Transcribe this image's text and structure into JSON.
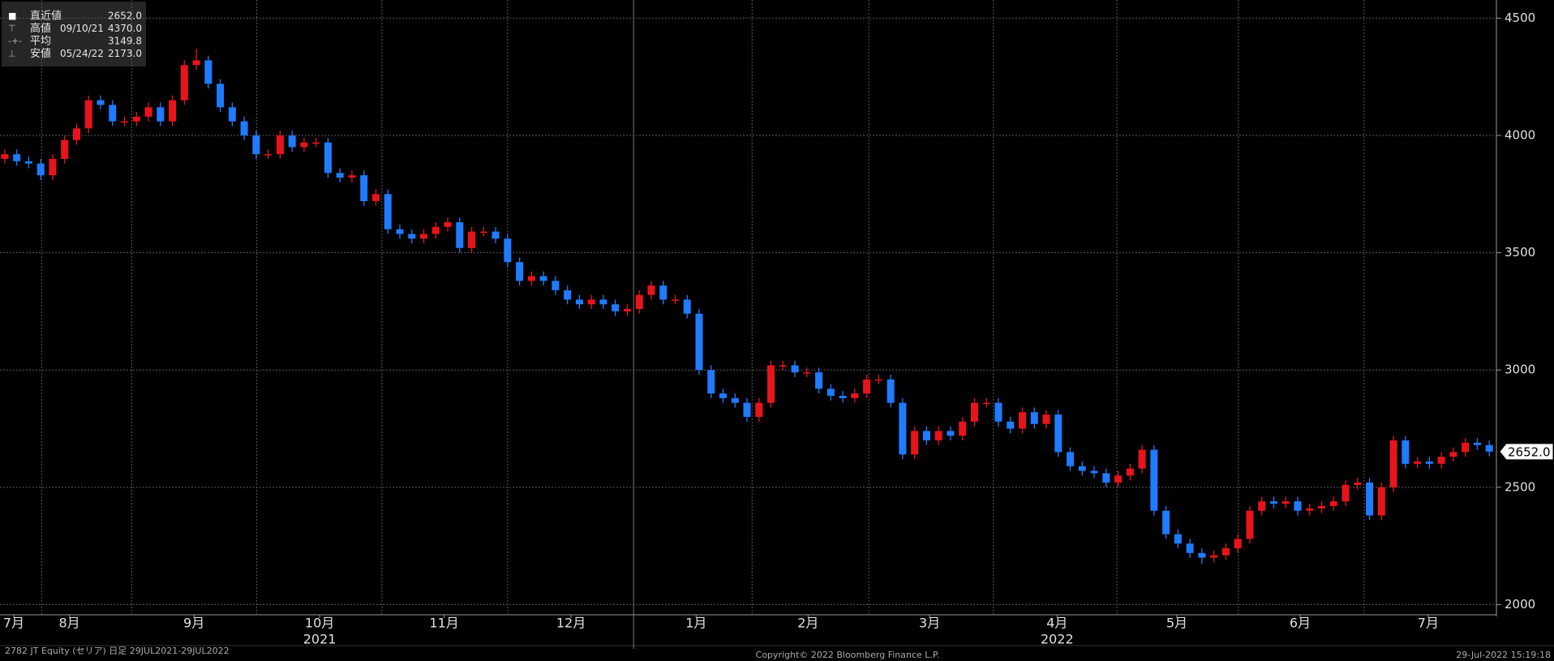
{
  "chart_data": {
    "type": "candlestick",
    "up_color": "#e8141c",
    "down_color": "#1f7bff",
    "grid": true,
    "ylim": [
      1960,
      4560
    ],
    "yticks": [
      2000,
      2500,
      3000,
      3500,
      4000,
      4500
    ],
    "xlim": [
      -0.4,
      124.6
    ],
    "xticks": [
      {
        "value": 0.75,
        "label": "7月"
      },
      {
        "value": 5.4,
        "label": "8月"
      },
      {
        "value": 15.8,
        "label": "9月"
      },
      {
        "value": 26.3,
        "label": "10月"
      },
      {
        "value": 36.7,
        "label": "11月"
      },
      {
        "value": 47.3,
        "label": "12月"
      },
      {
        "value": 57.75,
        "label": "1月"
      },
      {
        "value": 67.1,
        "label": "2月"
      },
      {
        "value": 77.25,
        "label": "3月"
      },
      {
        "value": 87.9,
        "label": "4月"
      },
      {
        "value": 97.9,
        "label": "5月"
      },
      {
        "value": 108.2,
        "label": "6月"
      },
      {
        "value": 118.9,
        "label": "7月"
      }
    ],
    "year_ticks": [
      {
        "value": 26.3,
        "label": "2021"
      },
      {
        "value": 87.9,
        "label": "2022"
      }
    ],
    "legend_items": [
      {
        "label": "直近値",
        "date": "",
        "value": "2652.0"
      },
      {
        "label": "高値",
        "date": "09/10/21",
        "value": "4370.0"
      },
      {
        "label": "平均",
        "date": "",
        "value": "3149.8"
      },
      {
        "label": "安値",
        "date": "05/24/22",
        "value": "2173.0"
      }
    ],
    "last_label": "2652.0",
    "footer_left": "2782 JT Equity (セリア)  日足 29JUL2021-29JUL2022",
    "footer_center": "Copyright© 2022 Bloomberg Finance L.P.",
    "footer_right": "29-Jul-2022 15:19:18",
    "open": [
      3900,
      3920,
      3890,
      3880,
      3830,
      3900,
      3980,
      4030,
      4150,
      4130,
      4060,
      4060,
      4080,
      4120,
      4060,
      4150,
      4300,
      4320,
      4220,
      4120,
      4060,
      4000,
      3920,
      3920,
      4000,
      3950,
      3970,
      3970,
      3840,
      3820,
      3830,
      3720,
      3750,
      3600,
      3580,
      3560,
      3580,
      3610,
      3630,
      3520,
      3590,
      3590,
      3560,
      3460,
      3380,
      3400,
      3380,
      3340,
      3300,
      3280,
      3300,
      3280,
      3250,
      3260,
      3320,
      3360,
      3300,
      3300,
      3240,
      3000,
      2900,
      2880,
      2860,
      2800,
      2860,
      3020,
      3020,
      2990,
      2990,
      2920,
      2890,
      2880,
      2900,
      2960,
      2960,
      2860,
      2640,
      2740,
      2700,
      2740,
      2720,
      2780,
      2860,
      2860,
      2780,
      2750,
      2820,
      2770,
      2810,
      2650,
      2590,
      2570,
      2560,
      2520,
      2550,
      2580,
      2660,
      2400,
      2300,
      2260,
      2220,
      2200,
      2210,
      2240,
      2280,
      2400,
      2440,
      2430,
      2440,
      2400,
      2410,
      2420,
      2440,
      2510,
      2520,
      2380,
      2500,
      2700,
      2600,
      2610,
      2600,
      2630,
      2650,
      2690,
      2680
    ],
    "high": [
      3940,
      3940,
      3910,
      3900,
      3920,
      4000,
      4050,
      4170,
      4170,
      4150,
      4080,
      4100,
      4140,
      4140,
      4170,
      4320,
      4370,
      4340,
      4240,
      4140,
      4080,
      4020,
      3940,
      4020,
      4020,
      3990,
      3990,
      3990,
      3860,
      3850,
      3850,
      3770,
      3770,
      3620,
      3600,
      3600,
      3630,
      3650,
      3650,
      3610,
      3610,
      3610,
      3580,
      3480,
      3420,
      3420,
      3400,
      3360,
      3320,
      3320,
      3320,
      3300,
      3280,
      3340,
      3380,
      3380,
      3320,
      3320,
      3260,
      3020,
      2920,
      2900,
      2880,
      2880,
      3040,
      3040,
      3040,
      3010,
      3010,
      2940,
      2910,
      2920,
      2980,
      2980,
      2980,
      2880,
      2760,
      2760,
      2760,
      2760,
      2800,
      2880,
      2880,
      2880,
      2800,
      2840,
      2840,
      2830,
      2830,
      2670,
      2610,
      2590,
      2580,
      2570,
      2600,
      2680,
      2680,
      2420,
      2320,
      2280,
      2240,
      2230,
      2260,
      2300,
      2420,
      2460,
      2460,
      2460,
      2460,
      2430,
      2440,
      2460,
      2530,
      2540,
      2540,
      2520,
      2720,
      2720,
      2630,
      2630,
      2650,
      2670,
      2710,
      2710,
      2700
    ],
    "low": [
      3880,
      3870,
      3860,
      3810,
      3810,
      3880,
      3960,
      4010,
      4110,
      4040,
      4040,
      4040,
      4060,
      4040,
      4040,
      4130,
      4280,
      4200,
      4100,
      4040,
      3980,
      3900,
      3900,
      3900,
      3930,
      3930,
      3950,
      3820,
      3800,
      3800,
      3700,
      3700,
      3580,
      3560,
      3540,
      3540,
      3560,
      3590,
      3500,
      3500,
      3570,
      3540,
      3440,
      3360,
      3360,
      3360,
      3320,
      3280,
      3260,
      3260,
      3260,
      3230,
      3230,
      3240,
      3300,
      3280,
      3280,
      3220,
      2980,
      2880,
      2860,
      2840,
      2780,
      2780,
      2840,
      3000,
      2970,
      2970,
      2900,
      2870,
      2860,
      2860,
      2880,
      2940,
      2840,
      2620,
      2620,
      2680,
      2680,
      2700,
      2700,
      2760,
      2840,
      2760,
      2730,
      2730,
      2750,
      2750,
      2630,
      2570,
      2550,
      2540,
      2500,
      2500,
      2530,
      2560,
      2380,
      2280,
      2240,
      2200,
      2173,
      2180,
      2190,
      2220,
      2260,
      2380,
      2410,
      2410,
      2380,
      2380,
      2390,
      2400,
      2420,
      2490,
      2360,
      2360,
      2480,
      2580,
      2580,
      2580,
      2580,
      2610,
      2630,
      2660,
      2632
    ],
    "close": [
      3920,
      3890,
      3880,
      3830,
      3900,
      3980,
      4030,
      4150,
      4130,
      4060,
      4060,
      4080,
      4120,
      4060,
      4150,
      4300,
      4320,
      4220,
      4120,
      4060,
      4000,
      3920,
      3920,
      4000,
      3950,
      3970,
      3970,
      3840,
      3820,
      3830,
      3720,
      3750,
      3600,
      3580,
      3560,
      3580,
      3610,
      3630,
      3520,
      3590,
      3590,
      3560,
      3460,
      3380,
      3400,
      3380,
      3340,
      3300,
      3280,
      3300,
      3280,
      3250,
      3260,
      3320,
      3360,
      3300,
      3300,
      3240,
      3000,
      2900,
      2880,
      2860,
      2800,
      2860,
      3020,
      3020,
      2990,
      2990,
      2920,
      2890,
      2880,
      2900,
      2960,
      2960,
      2860,
      2640,
      2740,
      2700,
      2740,
      2720,
      2780,
      2860,
      2860,
      2780,
      2750,
      2820,
      2770,
      2810,
      2650,
      2590,
      2570,
      2560,
      2520,
      2550,
      2580,
      2660,
      2400,
      2300,
      2260,
      2220,
      2200,
      2210,
      2240,
      2280,
      2400,
      2440,
      2430,
      2440,
      2400,
      2410,
      2420,
      2440,
      2510,
      2520,
      2380,
      2500,
      2700,
      2600,
      2610,
      2600,
      2630,
      2650,
      2690,
      2680,
      2652
    ]
  }
}
